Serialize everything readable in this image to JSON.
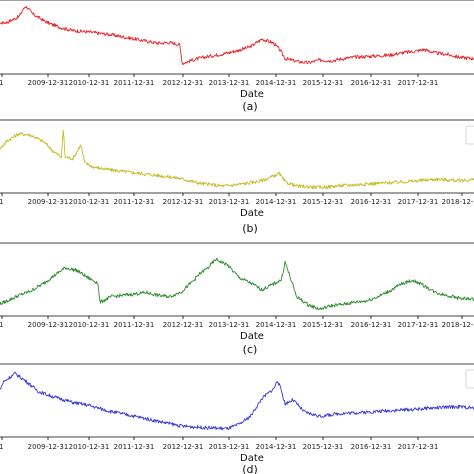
{
  "chart_data": [
    {
      "type": "line",
      "caption": "(a)",
      "xlabel": "Date",
      "x_ticks": [
        "2009-12-31",
        "2010-12-31",
        "2011-12-31",
        "2012-12-31",
        "2013-12-31",
        "2014-12-31",
        "2015-12-31",
        "2016-12-31",
        "2017-12-31"
      ],
      "cut_tick_left": "1",
      "cut_tick_right": "",
      "x_range": [
        "2009-01-01",
        "2019-04-30"
      ],
      "color": "#e8262a",
      "legend_box": false,
      "series": [
        {
          "x": [
            "2009-01-01",
            "2009-04-01",
            "2009-07-01",
            "2009-08-20",
            "2009-09-10",
            "2009-10-15",
            "2010-01-15",
            "2010-03-01",
            "2010-06-01",
            "2010-09-01",
            "2011-01-01",
            "2011-04-01",
            "2011-07-01",
            "2011-10-01",
            "2012-01-01",
            "2012-04-01",
            "2012-07-01",
            "2012-10-01",
            "2012-12-20",
            "2013-01-10",
            "2013-04-01",
            "2013-07-01",
            "2013-10-01",
            "2014-01-01",
            "2014-04-01",
            "2014-07-01",
            "2014-10-01",
            "2015-01-01",
            "2015-02-20",
            "2015-04-01",
            "2015-07-01",
            "2015-10-01",
            "2016-01-01",
            "2016-04-01",
            "2016-07-01",
            "2016-10-01",
            "2017-01-01",
            "2017-04-01",
            "2017-07-01",
            "2017-10-01",
            "2018-01-01",
            "2018-04-01",
            "2018-07-01",
            "2018-10-01",
            "2019-01-01",
            "2019-04-30"
          ],
          "y": [
            0.72,
            0.74,
            0.82,
            0.97,
            0.94,
            0.86,
            0.76,
            0.72,
            0.66,
            0.62,
            0.6,
            0.58,
            0.56,
            0.53,
            0.5,
            0.47,
            0.44,
            0.45,
            0.42,
            0.15,
            0.2,
            0.24,
            0.27,
            0.3,
            0.34,
            0.39,
            0.5,
            0.44,
            0.34,
            0.22,
            0.18,
            0.16,
            0.2,
            0.19,
            0.22,
            0.24,
            0.25,
            0.26,
            0.27,
            0.3,
            0.32,
            0.35,
            0.3,
            0.28,
            0.24,
            0.22
          ]
        }
      ]
    },
    {
      "type": "line",
      "caption": "(b)",
      "xlabel": "Date",
      "x_ticks": [
        "2009-12-31",
        "2010-12-31",
        "2011-12-31",
        "2012-12-31",
        "2013-12-31",
        "2014-12-31",
        "2015-12-31",
        "2016-12-31",
        "2017-12-31",
        "2018-12-31"
      ],
      "cut_tick_left": "1",
      "cut_tick_right": "",
      "x_range": [
        "2009-01-01",
        "2019-04-30"
      ],
      "color": "#c8bb28",
      "legend_box": true,
      "series": [
        {
          "x": [
            "2009-01-01",
            "2009-04-01",
            "2009-07-01",
            "2009-10-01",
            "2010-01-15",
            "2010-04-01",
            "2010-06-01",
            "2010-06-15",
            "2010-07-01",
            "2010-09-01",
            "2010-11-01",
            "2010-12-01",
            "2011-02-01",
            "2011-06-01",
            "2011-12-01",
            "2012-06-01",
            "2012-12-01",
            "2013-06-01",
            "2013-12-01",
            "2014-06-01",
            "2014-10-01",
            "2015-02-15",
            "2015-04-01",
            "2015-07-01",
            "2016-01-01",
            "2016-07-01",
            "2017-01-01",
            "2017-07-01",
            "2018-01-01",
            "2018-07-01",
            "2019-01-01",
            "2019-04-30"
          ],
          "y": [
            0.58,
            0.76,
            0.86,
            0.84,
            0.74,
            0.6,
            0.52,
            0.92,
            0.52,
            0.5,
            0.7,
            0.44,
            0.38,
            0.34,
            0.3,
            0.26,
            0.22,
            0.14,
            0.1,
            0.14,
            0.18,
            0.28,
            0.16,
            0.1,
            0.08,
            0.11,
            0.13,
            0.15,
            0.17,
            0.2,
            0.18,
            0.19
          ]
        }
      ]
    },
    {
      "type": "line",
      "caption": "(c)",
      "xlabel": "Date",
      "x_ticks": [
        "2009-12-31",
        "2010-12-31",
        "2011-12-31",
        "2012-12-31",
        "2013-12-31",
        "2014-12-31",
        "2015-12-31",
        "2016-12-31",
        "2017-12-31",
        "2018-12-31"
      ],
      "cut_tick_left": "1",
      "cut_tick_right": "",
      "x_range": [
        "2009-01-01",
        "2019-04-30"
      ],
      "color": "#2e8b2e",
      "legend_box": false,
      "series": [
        {
          "x": [
            "2009-01-01",
            "2009-04-01",
            "2009-07-01",
            "2009-10-01",
            "2010-01-01",
            "2010-04-01",
            "2010-07-01",
            "2010-10-01",
            "2011-01-01",
            "2011-03-15",
            "2011-04-01",
            "2011-07-01",
            "2011-10-01",
            "2012-01-01",
            "2012-04-01",
            "2012-07-01",
            "2012-10-01",
            "2013-01-01",
            "2013-04-01",
            "2013-06-01",
            "2013-08-01",
            "2013-10-01",
            "2014-01-01",
            "2014-04-01",
            "2014-07-01",
            "2014-10-01",
            "2015-01-15",
            "2015-03-01",
            "2015-04-01",
            "2015-07-01",
            "2015-10-01",
            "2016-01-01",
            "2016-04-01",
            "2016-07-01",
            "2016-10-01",
            "2017-01-01",
            "2017-04-01",
            "2017-07-01",
            "2017-10-01",
            "2018-01-01",
            "2018-04-01",
            "2018-07-01",
            "2018-10-01",
            "2019-01-01",
            "2019-04-30"
          ],
          "y": [
            0.15,
            0.22,
            0.3,
            0.36,
            0.46,
            0.58,
            0.7,
            0.66,
            0.55,
            0.48,
            0.2,
            0.28,
            0.3,
            0.32,
            0.34,
            0.3,
            0.28,
            0.35,
            0.5,
            0.62,
            0.7,
            0.82,
            0.74,
            0.56,
            0.48,
            0.38,
            0.48,
            0.52,
            0.78,
            0.28,
            0.16,
            0.1,
            0.15,
            0.17,
            0.2,
            0.22,
            0.28,
            0.36,
            0.46,
            0.52,
            0.44,
            0.34,
            0.3,
            0.26,
            0.24
          ]
        }
      ]
    },
    {
      "type": "line",
      "caption": "(d)",
      "xlabel": "Date",
      "x_ticks": [
        "2009-12-31",
        "2010-12-31",
        "2011-12-31",
        "2012-12-31",
        "2013-12-31",
        "2014-12-31",
        "2015-12-31",
        "2016-12-31",
        "2017-12-31"
      ],
      "cut_tick_left": "1",
      "cut_tick_right": "",
      "x_range": [
        "2009-01-01",
        "2019-04-30"
      ],
      "color": "#3a3adc",
      "legend_box": true,
      "series": [
        {
          "x": [
            "2009-01-01",
            "2009-03-01",
            "2009-06-01",
            "2009-09-01",
            "2009-12-01",
            "2010-03-01",
            "2010-06-01",
            "2010-09-01",
            "2011-01-01",
            "2011-06-01",
            "2012-01-01",
            "2012-06-01",
            "2013-01-01",
            "2013-06-01",
            "2014-01-01",
            "2014-04-01",
            "2014-07-01",
            "2014-10-01",
            "2015-01-01",
            "2015-02-01",
            "2015-03-01",
            "2015-04-01",
            "2015-06-01",
            "2015-09-01",
            "2016-01-01",
            "2016-06-01",
            "2017-01-01",
            "2017-06-01",
            "2018-01-01",
            "2018-06-01",
            "2019-01-01",
            "2019-04-30"
          ],
          "y": [
            0.55,
            0.8,
            0.92,
            0.8,
            0.66,
            0.6,
            0.55,
            0.5,
            0.46,
            0.38,
            0.3,
            0.24,
            0.16,
            0.14,
            0.12,
            0.18,
            0.3,
            0.56,
            0.7,
            0.82,
            0.68,
            0.48,
            0.54,
            0.36,
            0.3,
            0.34,
            0.36,
            0.38,
            0.4,
            0.42,
            0.44,
            0.42
          ]
        }
      ]
    }
  ]
}
